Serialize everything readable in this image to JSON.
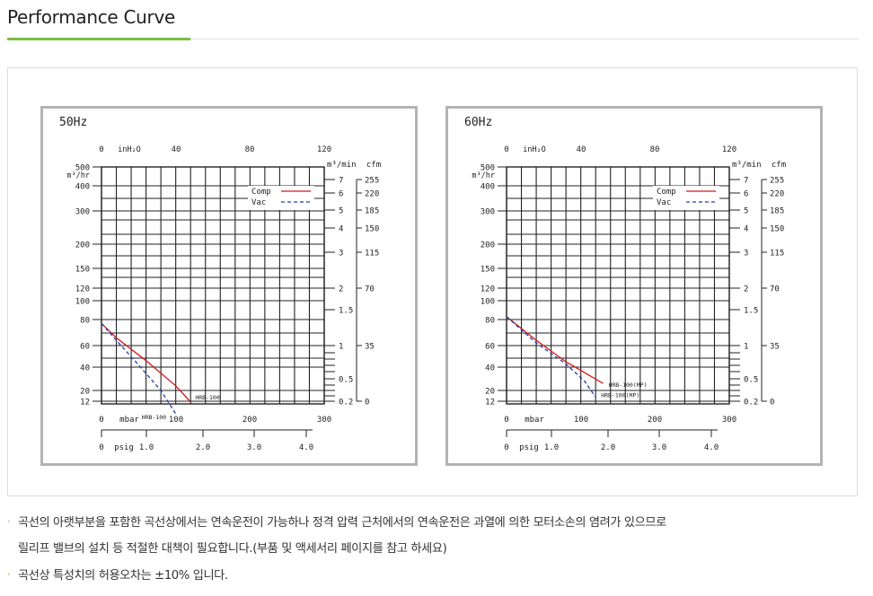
{
  "header": {
    "title": "Performance Curve"
  },
  "notes": [
    {
      "bullet": "·",
      "lines": [
        "곡선의 아랫부분을 포함한 곡선상에서는 연속운전이 가능하나 정격 압력 근처에서의 연속운전은 과열에 의한 모터소손의 염려가 있으므로",
        "릴리프 밸브의 설치 등 적절한 대책이 필요합니다.(부품 및 액세서리 페이지를 참고 하세요)"
      ]
    },
    {
      "bullet": "·",
      "lines": [
        "곡선상 특성치의 허용오차는 ±10% 입니다."
      ]
    }
  ],
  "chart_data": [
    {
      "type": "line",
      "title": "50Hz",
      "x_axes": {
        "top": {
          "label": "inH₂O",
          "ticks": [
            "0",
            "40",
            "80",
            "120"
          ]
        },
        "bottom": {
          "label": "mbar",
          "ticks": [
            "0",
            "100",
            "200",
            "300"
          ],
          "range": [
            0,
            300
          ]
        },
        "psig": {
          "label": "psig",
          "ticks": [
            "0",
            "1.0",
            "2.0",
            "3.0",
            "4.0"
          ]
        }
      },
      "y_axes": {
        "left_unit": "m³/hr",
        "left_ticks": [
          "500",
          "400",
          "300",
          "200",
          "150",
          "120",
          "100",
          "80",
          "60",
          "40",
          "20",
          "12"
        ],
        "mid_unit": "m³/min",
        "mid_ticks": [
          "7",
          "6",
          "5",
          "4",
          "3",
          "2",
          "1.5",
          "1",
          "0.5",
          "0.2"
        ],
        "right_unit": "cfm",
        "right_ticks": [
          "255",
          "220",
          "185",
          "150",
          "115",
          "70",
          "35",
          "0"
        ]
      },
      "legend": {
        "position": "top-right",
        "entries": [
          {
            "name": "Comp",
            "color": "#d01818",
            "style": "solid"
          },
          {
            "name": "Vac",
            "color": "#1f3fb0",
            "style": "dashed"
          }
        ]
      },
      "series": [
        {
          "name": "Comp",
          "color": "#d01818",
          "dash": false,
          "label": "HRB-100",
          "points": [
            [
              0,
              77
            ],
            [
              20,
              66
            ],
            [
              60,
              46
            ],
            [
              100,
              24
            ],
            [
              119,
              12
            ]
          ]
        },
        {
          "name": "Vac",
          "color": "#1f3fb0",
          "dash": true,
          "label": "HRB-100",
          "points": [
            [
              0,
              77
            ],
            [
              20,
              64
            ],
            [
              50,
              42
            ],
            [
              80,
              20
            ],
            [
              100,
              7
            ]
          ]
        }
      ]
    },
    {
      "type": "line",
      "title": "60Hz",
      "x_axes": {
        "top": {
          "label": "inH₂O",
          "ticks": [
            "0",
            "40",
            "80",
            "120"
          ]
        },
        "bottom": {
          "label": "mbar",
          "ticks": [
            "0",
            "100",
            "200",
            "300"
          ],
          "range": [
            0,
            300
          ]
        },
        "psig": {
          "label": "psig",
          "ticks": [
            "0",
            "1.0",
            "2.0",
            "3.0",
            "4.0"
          ]
        }
      },
      "y_axes": {
        "left_unit": "m³/hr",
        "left_ticks": [
          "500",
          "400",
          "300",
          "200",
          "150",
          "120",
          "100",
          "80",
          "60",
          "40",
          "20",
          "12"
        ],
        "mid_unit": "m³/min",
        "mid_ticks": [
          "7",
          "6",
          "5",
          "4",
          "3",
          "2",
          "1.5",
          "1",
          "0.5",
          "0.2"
        ],
        "right_unit": "cfm",
        "right_ticks": [
          "255",
          "220",
          "185",
          "150",
          "115",
          "70",
          "35",
          "0"
        ]
      },
      "legend": {
        "position": "top-right",
        "entries": [
          {
            "name": "Comp",
            "color": "#d01818",
            "style": "solid"
          },
          {
            "name": "Vac",
            "color": "#1f3fb0",
            "style": "dashed"
          }
        ]
      },
      "series": [
        {
          "name": "Comp",
          "color": "#d01818",
          "dash": false,
          "label": "HRB-100(MP)",
          "points": [
            [
              0,
              83
            ],
            [
              40,
              64
            ],
            [
              80,
              45
            ],
            [
              130,
              26
            ]
          ]
        },
        {
          "name": "Vac",
          "color": "#1f3fb0",
          "dash": true,
          "label": "HRB-100(MP)",
          "points": [
            [
              0,
              83
            ],
            [
              40,
              62
            ],
            [
              80,
              43
            ],
            [
              105,
              28
            ],
            [
              120,
              15
            ]
          ]
        }
      ]
    }
  ]
}
